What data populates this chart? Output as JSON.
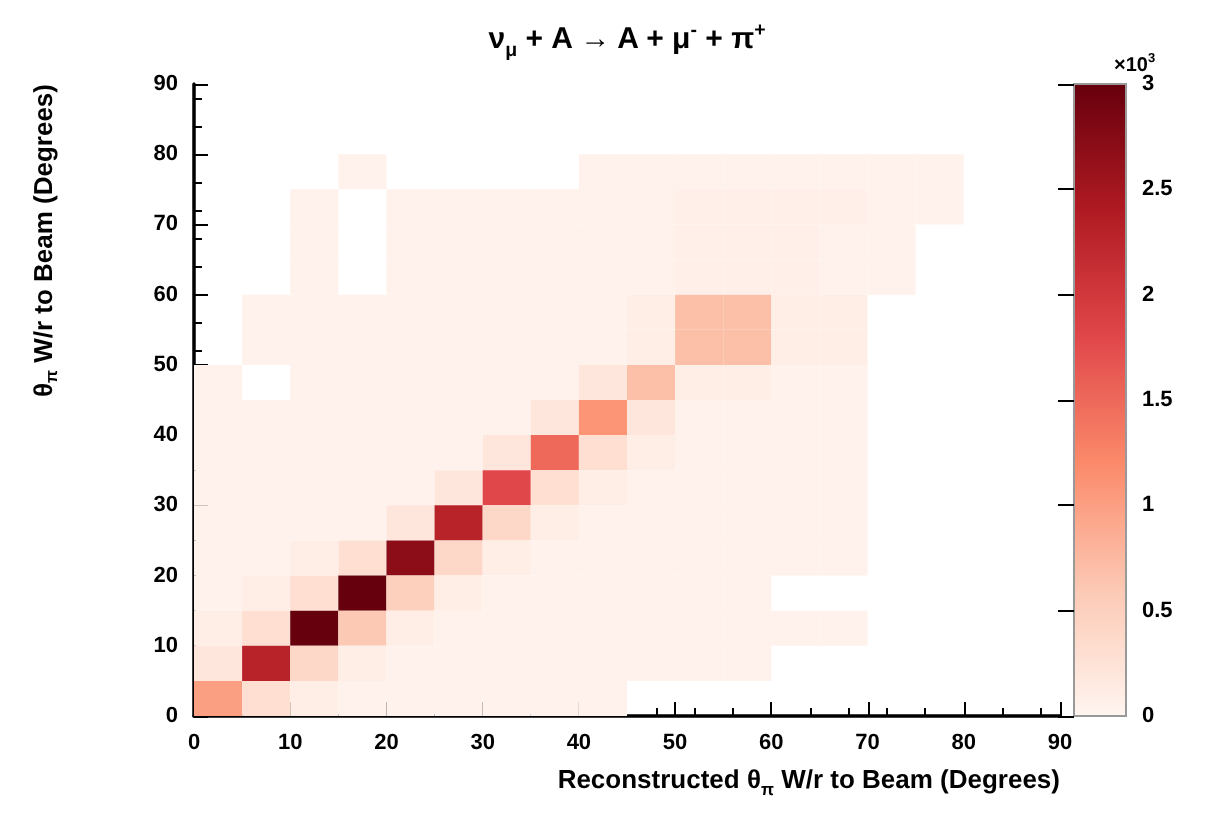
{
  "chart_data": {
    "type": "heatmap",
    "title": "ν$_{μ}$ + A → A + μ$^{-}$ + π$^{+}$",
    "xlabel": "Reconstructed θ$_{π}$ W/r to Beam (Degrees)",
    "ylabel": "θ$_{π}$ W/r to Beam (Degrees)",
    "annotations": [
      "×10$^{3}$"
    ],
    "x": [
      2.5,
      7.5,
      12.5,
      17.5,
      22.5,
      27.5,
      32.5,
      37.5,
      42.5,
      47.5,
      52.5,
      57.5,
      62.5,
      67.5,
      72.5,
      77.5
    ],
    "y": [
      77.5,
      72.5,
      67.5,
      62.5,
      57.5,
      52.5,
      47.5,
      42.5,
      37.5,
      32.5,
      27.5,
      22.5,
      17.5,
      12.5,
      7.5,
      2.5
    ],
    "xlim": [
      0,
      90
    ],
    "xticks": [
      0,
      10,
      20,
      30,
      40,
      50,
      60,
      70,
      80,
      90
    ],
    "ylim": [
      0,
      90
    ],
    "yticks": [
      0,
      10,
      20,
      30,
      40,
      50,
      60,
      70,
      80,
      90
    ],
    "clim": [
      0,
      3
    ],
    "cticks": [
      0,
      0.5,
      1,
      1.5,
      2,
      2.5,
      3
    ],
    "cells": [
      [
        null,
        null,
        null,
        0.05,
        null,
        null,
        null,
        null,
        0.05,
        0.05,
        0.05,
        0.05,
        0.05,
        0.05,
        0.05,
        0.05
      ],
      [
        null,
        null,
        0.05,
        null,
        0.05,
        0.05,
        0.05,
        0.05,
        0.05,
        0.05,
        0.08,
        0.08,
        0.08,
        0.08,
        0.05,
        0.05
      ],
      [
        null,
        null,
        0.05,
        null,
        0.05,
        0.05,
        0.05,
        0.05,
        0.05,
        0.05,
        0.08,
        0.08,
        0.08,
        0.05,
        0.05,
        null
      ],
      [
        null,
        null,
        0.05,
        null,
        0.05,
        0.05,
        0.05,
        0.05,
        0.05,
        0.05,
        0.08,
        0.08,
        0.08,
        0.05,
        0.05,
        null
      ],
      [
        null,
        0.05,
        0.05,
        0.05,
        0.05,
        0.05,
        0.05,
        0.05,
        0.05,
        0.1,
        0.7,
        0.7,
        0.1,
        0.1,
        null,
        null
      ],
      [
        null,
        0.05,
        0.05,
        0.05,
        0.05,
        0.05,
        0.05,
        0.05,
        0.05,
        0.1,
        0.7,
        0.7,
        0.1,
        0.1,
        null,
        null
      ],
      [
        0.05,
        null,
        0.05,
        0.05,
        0.05,
        0.05,
        0.05,
        0.05,
        0.2,
        0.7,
        0.1,
        0.1,
        0.05,
        0.05,
        null,
        null
      ],
      [
        0.05,
        0.05,
        0.05,
        0.05,
        0.05,
        0.05,
        0.05,
        0.2,
        1.1,
        0.2,
        0.05,
        0.05,
        0.05,
        0.05,
        null,
        null
      ],
      [
        0.05,
        0.05,
        0.05,
        0.05,
        0.05,
        0.05,
        0.2,
        1.5,
        0.3,
        0.1,
        0.05,
        0.05,
        0.05,
        0.05,
        null,
        null
      ],
      [
        0.05,
        0.05,
        0.05,
        0.05,
        0.05,
        0.2,
        1.8,
        0.3,
        0.1,
        0.05,
        0.05,
        0.05,
        0.05,
        0.05,
        null,
        null
      ],
      [
        0.05,
        0.05,
        0.05,
        0.05,
        0.2,
        2.3,
        0.4,
        0.1,
        0.05,
        0.05,
        0.05,
        0.05,
        0.05,
        0.05,
        null,
        null
      ],
      [
        0.05,
        0.05,
        0.1,
        0.3,
        2.7,
        0.4,
        0.1,
        0.05,
        0.05,
        0.05,
        0.05,
        0.05,
        0.05,
        0.05,
        null,
        null
      ],
      [
        0.05,
        0.1,
        0.3,
        3.0,
        0.5,
        0.1,
        0.05,
        0.05,
        0.05,
        0.05,
        0.05,
        0.05,
        null,
        null,
        null,
        null
      ],
      [
        0.1,
        0.3,
        3.0,
        0.6,
        0.1,
        0.05,
        0.05,
        0.05,
        0.05,
        0.05,
        0.05,
        0.05,
        0.05,
        0.05,
        null,
        null
      ],
      [
        0.2,
        2.3,
        0.4,
        0.1,
        0.05,
        0.05,
        0.05,
        0.05,
        0.05,
        0.05,
        0.05,
        0.05,
        null,
        null,
        null,
        null
      ],
      [
        1.0,
        0.3,
        0.1,
        0.05,
        0.05,
        0.05,
        0.05,
        0.05,
        0.05,
        null,
        null,
        null,
        null,
        null,
        null,
        null
      ]
    ]
  }
}
